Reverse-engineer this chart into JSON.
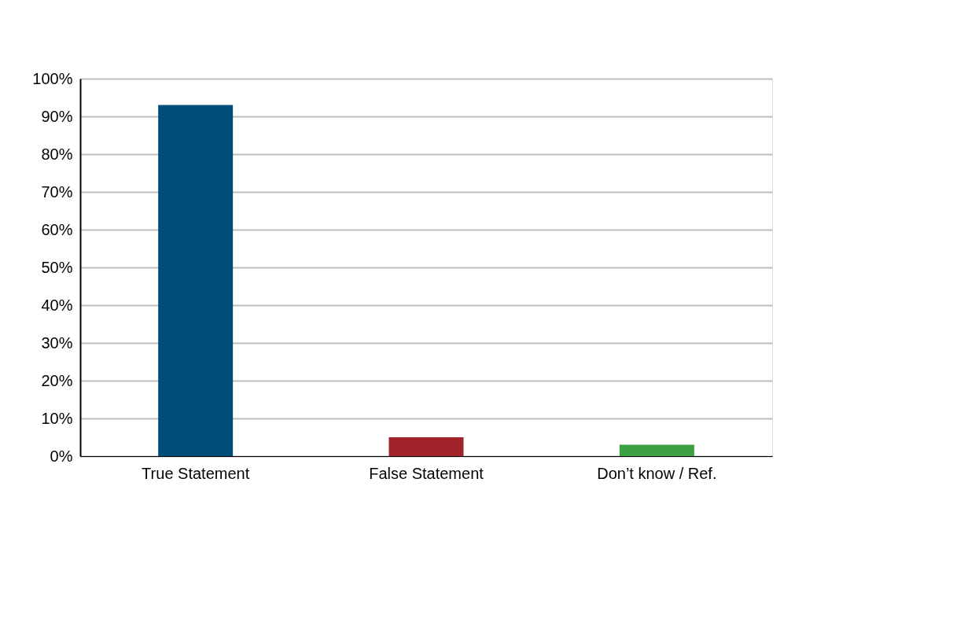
{
  "chart_data": {
    "type": "bar",
    "categories": [
      "True Statement",
      "False Statement",
      "Don’t know / Ref."
    ],
    "values": [
      93,
      5,
      3
    ],
    "colors": [
      "#004e7a",
      "#a3232a",
      "#3aa040"
    ],
    "ylim": [
      0,
      100
    ],
    "yticks": [
      {
        "value": 0,
        "label": "0%"
      },
      {
        "value": 10,
        "label": "10%"
      },
      {
        "value": 20,
        "label": "20%"
      },
      {
        "value": 30,
        "label": "30%"
      },
      {
        "value": 40,
        "label": "40%"
      },
      {
        "value": 50,
        "label": "50%"
      },
      {
        "value": 60,
        "label": "60%"
      },
      {
        "value": 70,
        "label": "70%"
      },
      {
        "value": 80,
        "label": "80%"
      },
      {
        "value": 90,
        "label": "90%"
      },
      {
        "value": 100,
        "label": "100%"
      }
    ],
    "grid": "y"
  }
}
